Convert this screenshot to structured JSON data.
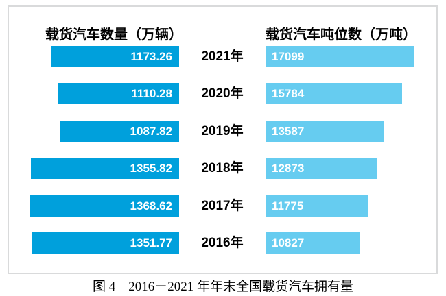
{
  "colors": {
    "left_bar": "#00A0DC",
    "right_bar": "#66CCF0",
    "box_border": "#D9DADB",
    "bar_value_text": "#FFFFFF",
    "text": "#000000",
    "background": "#FFFFFF"
  },
  "headers": {
    "left": "载货汽车数量（万辆）",
    "right": "载货汽车吨位数（万吨）"
  },
  "caption": "图 4　2016－2021 年年末全国载货汽车拥有量",
  "chart_data": {
    "type": "bar",
    "subtype": "tornado",
    "title": "图 4　2016－2021 年年末全国载货汽车拥有量",
    "categories": [
      "2021年",
      "2020年",
      "2019年",
      "2018年",
      "2017年",
      "2016年"
    ],
    "series": [
      {
        "name": "载货汽车数量（万辆）",
        "side": "left",
        "color": "#00A0DC",
        "values": [
          1173.26,
          1110.28,
          1087.82,
          1355.82,
          1368.62,
          1351.77
        ],
        "labels": [
          "1173.26",
          "1110.28",
          "1087.82",
          "1355.82",
          "1368.62",
          "1351.77"
        ]
      },
      {
        "name": "载货汽车吨位数（万吨）",
        "side": "right",
        "color": "#66CCF0",
        "values": [
          17099,
          15784,
          13587,
          12873,
          11775,
          10827
        ],
        "labels": [
          "17099",
          "15784",
          "13587",
          "12873",
          "11775",
          "10827"
        ]
      }
    ],
    "value_labels_inside": true,
    "legend": "none",
    "grid": false
  }
}
